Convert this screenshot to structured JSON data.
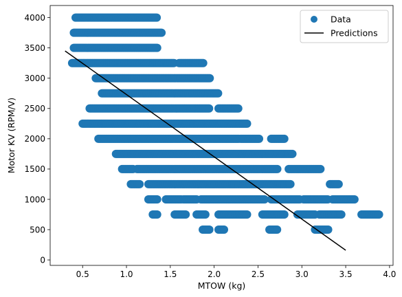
{
  "chart_data": {
    "type": "scatter",
    "xlabel": "MTOW (kg)",
    "ylabel": "Motor KV (RPM/V)",
    "xlim": [
      0.13,
      4.04
    ],
    "ylim": [
      -90,
      4200
    ],
    "xticks": [
      0.5,
      1.0,
      1.5,
      2.0,
      2.5,
      3.0,
      3.5,
      4.0
    ],
    "xtick_labels": [
      "0.5",
      "1.0",
      "1.5",
      "2.0",
      "2.5",
      "3.0",
      "3.5",
      "4.0"
    ],
    "yticks": [
      0,
      500,
      1000,
      1500,
      2000,
      2500,
      3000,
      3500,
      4000
    ],
    "ytick_labels": [
      "0",
      "500",
      "1000",
      "1500",
      "2000",
      "2500",
      "3000",
      "3500",
      "4000"
    ],
    "grid": false,
    "legend_position": "top-right",
    "colors": {
      "data": "#1f77b4",
      "predictions": "#000000"
    },
    "series": [
      {
        "name": "Data",
        "kind": "scatter",
        "rows": [
          {
            "y": 4000,
            "segments": [
              [
                0.42,
                1.35
              ]
            ]
          },
          {
            "y": 3750,
            "segments": [
              [
                0.4,
                1.4
              ]
            ]
          },
          {
            "y": 3500,
            "segments": [
              [
                0.4,
                1.35
              ]
            ]
          },
          {
            "y": 3250,
            "segments": [
              [
                0.38,
                1.55
              ],
              [
                1.6,
                1.88
              ]
            ]
          },
          {
            "y": 3000,
            "segments": [
              [
                0.65,
                1.95
              ]
            ]
          },
          {
            "y": 2750,
            "segments": [
              [
                0.72,
                2.05
              ]
            ]
          },
          {
            "y": 2500,
            "segments": [
              [
                0.58,
                1.95
              ],
              [
                2.05,
                2.28
              ]
            ]
          },
          {
            "y": 2250,
            "segments": [
              [
                0.5,
                2.38
              ]
            ]
          },
          {
            "y": 2000,
            "segments": [
              [
                0.68,
                2.28
              ],
              [
                2.3,
                2.52
              ],
              [
                2.65,
                2.8
              ]
            ]
          },
          {
            "y": 1750,
            "segments": [
              [
                0.88,
                2.9
              ]
            ]
          },
          {
            "y": 1500,
            "segments": [
              [
                0.95,
                1.08
              ],
              [
                1.12,
                2.72
              ],
              [
                2.85,
                3.22
              ]
            ]
          },
          {
            "y": 1250,
            "segments": [
              [
                1.05,
                1.15
              ],
              [
                1.25,
                1.82
              ],
              [
                1.82,
                2.88
              ],
              [
                3.32,
                3.43
              ]
            ]
          },
          {
            "y": 1000,
            "segments": [
              [
                1.25,
                1.35
              ],
              [
                1.45,
                1.63
              ],
              [
                1.65,
                1.8
              ],
              [
                1.85,
                2.58
              ],
              [
                2.65,
                2.98
              ],
              [
                3.02,
                3.3
              ],
              [
                3.35,
                3.6
              ]
            ]
          },
          {
            "y": 750,
            "segments": [
              [
                1.3,
                1.35
              ],
              [
                1.55,
                1.68
              ],
              [
                1.8,
                1.9
              ],
              [
                2.05,
                2.38
              ],
              [
                2.55,
                2.8
              ],
              [
                2.95,
                3.15
              ],
              [
                3.2,
                3.45
              ],
              [
                3.68,
                3.88
              ]
            ]
          },
          {
            "y": 500,
            "segments": [
              [
                1.87,
                1.95
              ],
              [
                2.05,
                2.12
              ],
              [
                2.63,
                2.72
              ],
              [
                3.15,
                3.3
              ]
            ]
          }
        ]
      },
      {
        "name": "Predictions",
        "kind": "line",
        "x": [
          0.3,
          3.5
        ],
        "y": [
          3450,
          160
        ]
      }
    ]
  }
}
